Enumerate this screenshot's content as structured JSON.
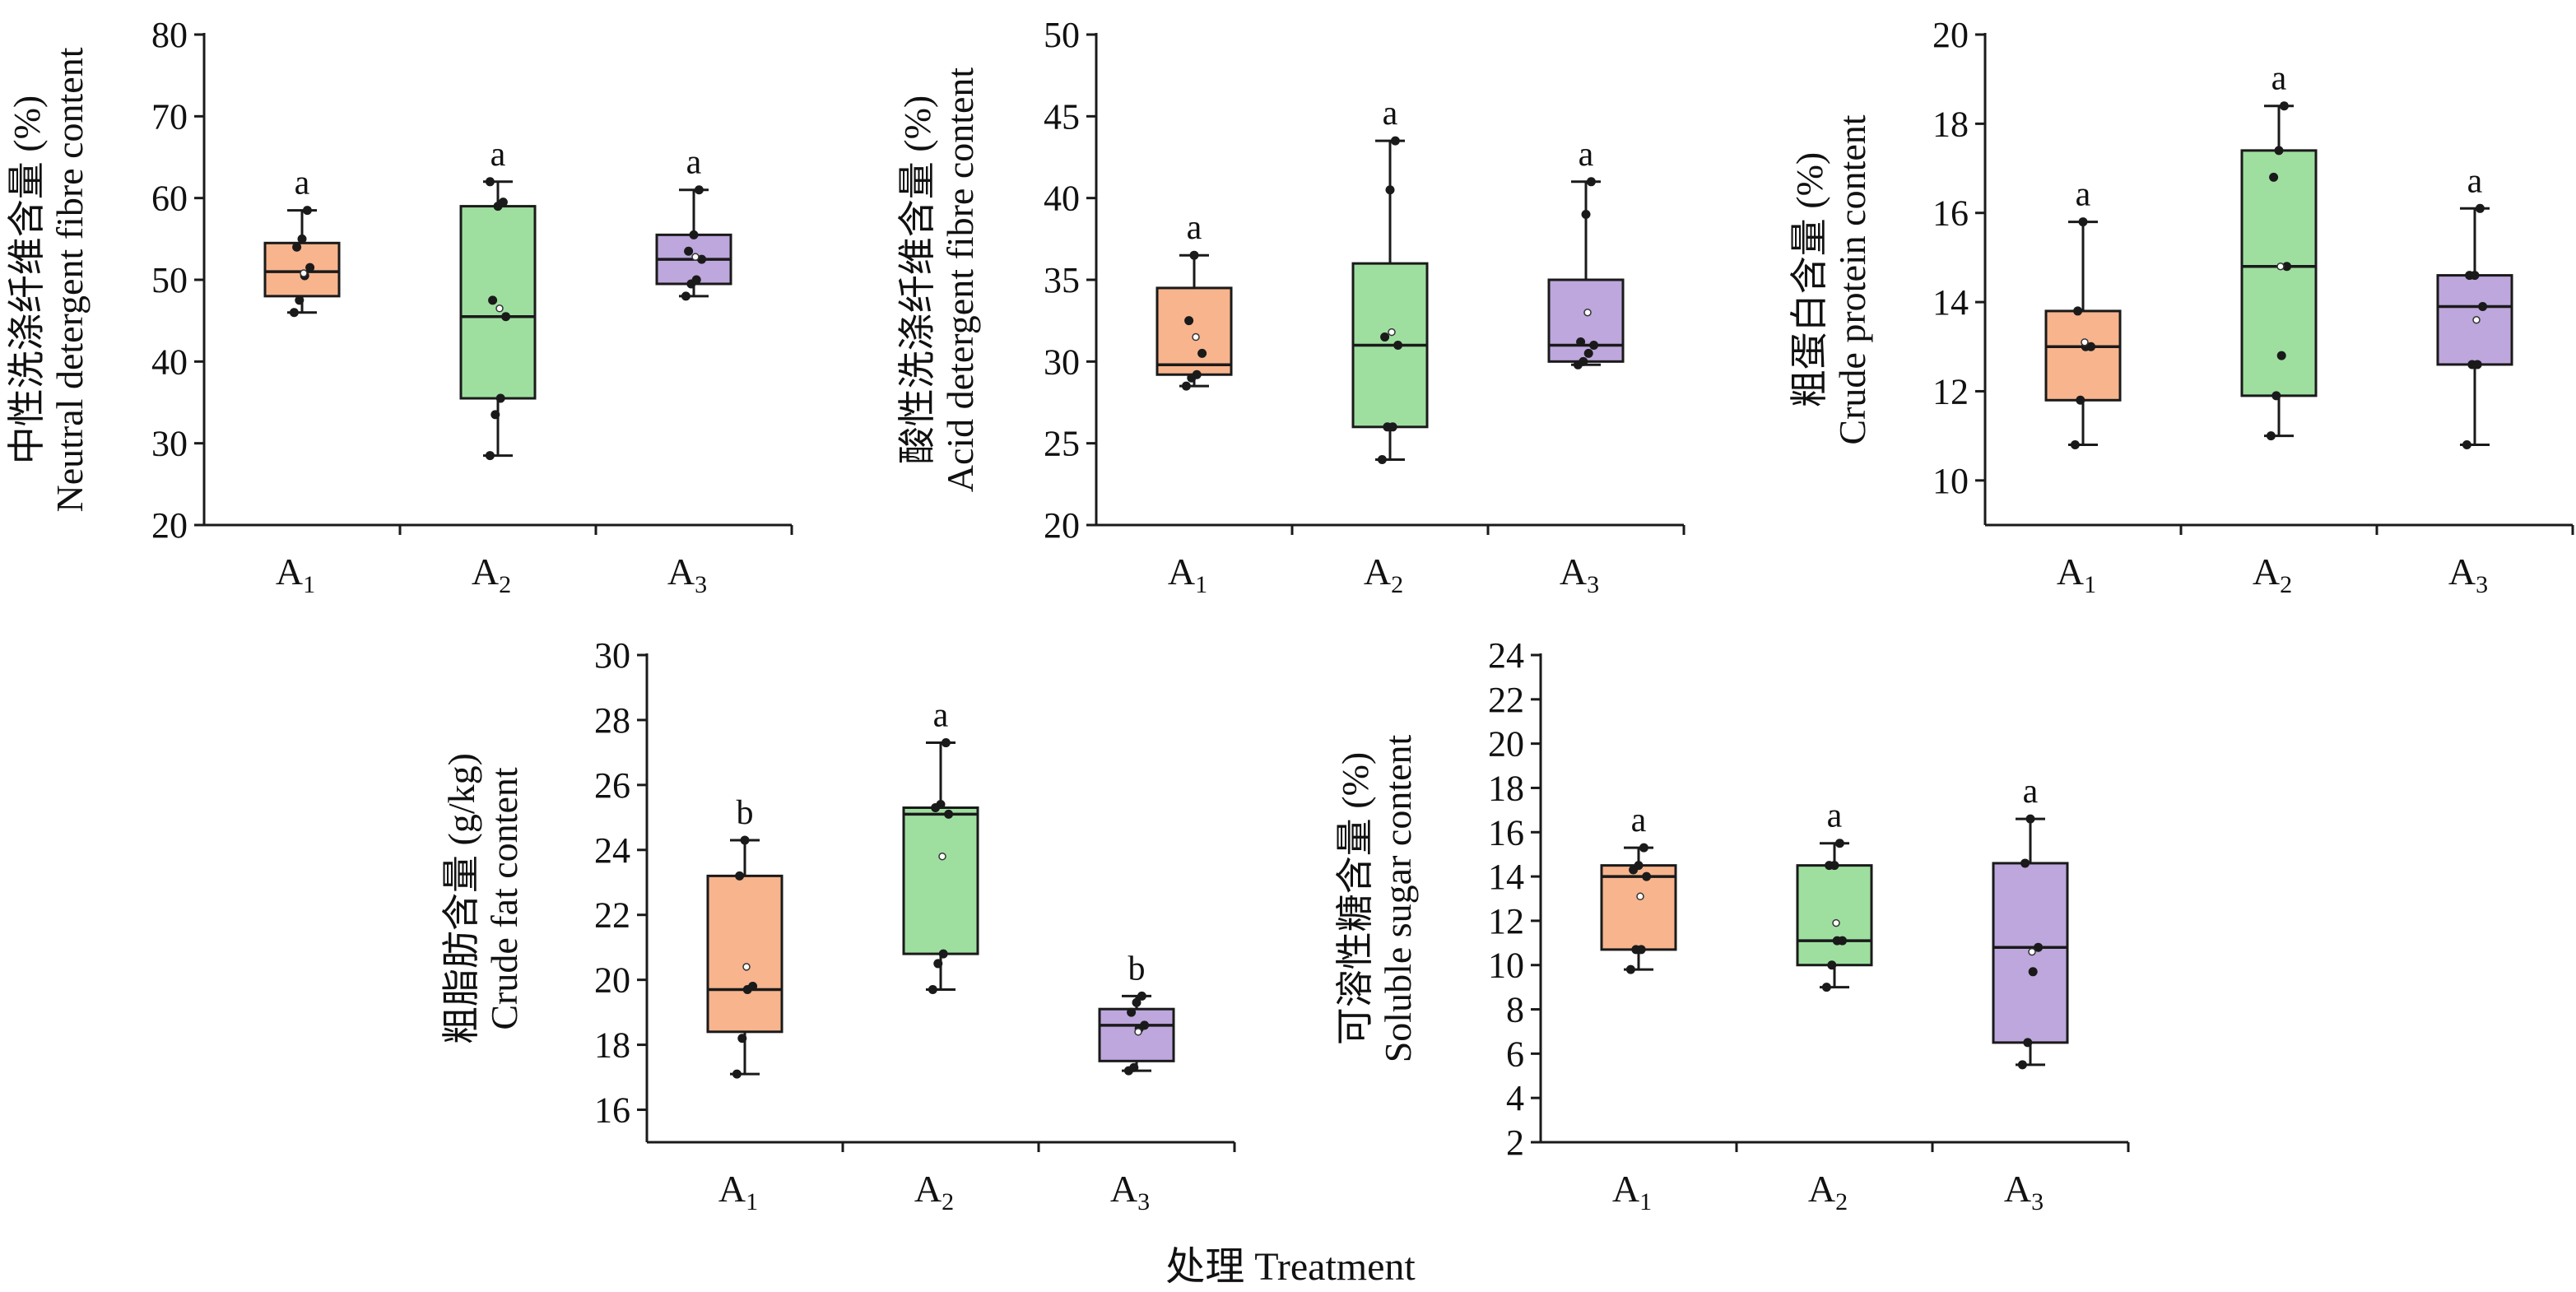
{
  "figure": {
    "xlabel": "处理 Treatment",
    "colors": {
      "A1": "#f7b48d",
      "A2": "#9edfa0",
      "A3": "#bda7dc",
      "line": "#1a1a1a",
      "point": "#1a1a1a"
    }
  },
  "chart_data": [
    {
      "type": "box",
      "ylabel_cn": "中性洗涤纤维含量 (%)",
      "ylabel_en": "Neutral detergent fibre content",
      "ylim": [
        20,
        80
      ],
      "yticks": [
        20,
        30,
        40,
        50,
        60,
        70,
        80
      ],
      "categories": [
        {
          "label": "A",
          "sub": "1"
        },
        {
          "label": "A",
          "sub": "2"
        },
        {
          "label": "A",
          "sub": "3"
        }
      ],
      "boxes": [
        {
          "min": 46,
          "q1": 48,
          "median": 51,
          "q3": 54.5,
          "max": 58.5,
          "mean": 50.8,
          "sig": "a",
          "points": [
            46,
            47.5,
            50.5,
            51.5,
            54,
            55,
            58.5
          ]
        },
        {
          "min": 28.5,
          "q1": 35.5,
          "median": 45.5,
          "q3": 59,
          "max": 62,
          "mean": 46.5,
          "sig": "a",
          "points": [
            28.5,
            33.5,
            35.5,
            45.5,
            47.5,
            59,
            59.5,
            62
          ]
        },
        {
          "min": 48,
          "q1": 49.5,
          "median": 52.5,
          "q3": 55.5,
          "max": 61,
          "mean": 52.8,
          "sig": "a",
          "points": [
            48,
            49.5,
            50,
            52.5,
            53.5,
            55.5,
            61
          ]
        }
      ]
    },
    {
      "type": "box",
      "ylabel_cn": "酸性洗涤纤维含量 (%)",
      "ylabel_en": "Acid detergent fibre content",
      "ylim": [
        20,
        50
      ],
      "yticks": [
        20,
        25,
        30,
        35,
        40,
        45,
        50
      ],
      "categories": [
        {
          "label": "A",
          "sub": "1"
        },
        {
          "label": "A",
          "sub": "2"
        },
        {
          "label": "A",
          "sub": "3"
        }
      ],
      "boxes": [
        {
          "min": 28.5,
          "q1": 29.2,
          "median": 29.8,
          "q3": 34.5,
          "max": 36.5,
          "mean": 31.5,
          "sig": "a",
          "points": [
            28.5,
            29,
            29.2,
            30.5,
            32.5,
            36.5
          ]
        },
        {
          "min": 24,
          "q1": 26,
          "median": 31,
          "q3": 36,
          "max": 43.5,
          "mean": 31.8,
          "sig": "a",
          "points": [
            24,
            26,
            26,
            31,
            31.5,
            40.5,
            43.5
          ]
        },
        {
          "min": 29.8,
          "q1": 30,
          "median": 31,
          "q3": 35,
          "max": 41,
          "mean": 33,
          "sig": "a",
          "points": [
            29.8,
            30,
            30.5,
            31,
            31.2,
            39,
            41
          ]
        }
      ]
    },
    {
      "type": "box",
      "ylabel_cn": "粗蛋白含量 (%)",
      "ylabel_en": "Crude protein content",
      "ylim": [
        9,
        20
      ],
      "yticks": [
        10,
        12,
        14,
        16,
        18,
        20
      ],
      "categories": [
        {
          "label": "A",
          "sub": "1"
        },
        {
          "label": "A",
          "sub": "2"
        },
        {
          "label": "A",
          "sub": "3"
        }
      ],
      "boxes": [
        {
          "min": 10.8,
          "q1": 11.8,
          "median": 13,
          "q3": 13.8,
          "max": 15.8,
          "mean": 13.1,
          "sig": "a",
          "points": [
            10.8,
            11.8,
            13,
            13,
            13.8,
            15.8
          ]
        },
        {
          "min": 11,
          "q1": 11.9,
          "median": 14.8,
          "q3": 17.4,
          "max": 18.4,
          "mean": 14.8,
          "sig": "a",
          "points": [
            11,
            11.9,
            12.8,
            14.8,
            16.8,
            17.4,
            18.4
          ]
        },
        {
          "min": 10.8,
          "q1": 12.6,
          "median": 13.9,
          "q3": 14.6,
          "max": 16.1,
          "mean": 13.6,
          "sig": "a",
          "points": [
            10.8,
            12.6,
            12.6,
            13.9,
            14.6,
            14.6,
            16.1
          ]
        }
      ]
    },
    {
      "type": "box",
      "ylabel_cn": "粗脂肪含量 (g/kg)",
      "ylabel_en": "Crude fat content",
      "ylim": [
        15,
        30
      ],
      "yticks": [
        16,
        18,
        20,
        22,
        24,
        26,
        28,
        30
      ],
      "categories": [
        {
          "label": "A",
          "sub": "1"
        },
        {
          "label": "A",
          "sub": "2"
        },
        {
          "label": "A",
          "sub": "3"
        }
      ],
      "boxes": [
        {
          "min": 17.1,
          "q1": 18.4,
          "median": 19.7,
          "q3": 23.2,
          "max": 24.3,
          "mean": 20.4,
          "sig": "b",
          "points": [
            17.1,
            18.2,
            19.7,
            19.8,
            23.2,
            24.3
          ]
        },
        {
          "min": 19.7,
          "q1": 20.8,
          "median": 25.1,
          "q3": 25.3,
          "max": 27.3,
          "mean": 23.8,
          "sig": "a",
          "points": [
            19.7,
            20.5,
            20.8,
            25.1,
            25.3,
            25.4,
            27.3
          ]
        },
        {
          "min": 17.2,
          "q1": 17.5,
          "median": 18.6,
          "q3": 19.1,
          "max": 19.5,
          "mean": 18.4,
          "sig": "b",
          "points": [
            17.2,
            17.3,
            18.5,
            18.6,
            19,
            19.3,
            19.5
          ]
        }
      ]
    },
    {
      "type": "box",
      "ylabel_cn": "可溶性糖含量 (%)",
      "ylabel_en": "Soluble sugar content",
      "ylim": [
        2,
        24
      ],
      "yticks": [
        2,
        4,
        6,
        8,
        10,
        12,
        14,
        16,
        18,
        20,
        22,
        24
      ],
      "categories": [
        {
          "label": "A",
          "sub": "1"
        },
        {
          "label": "A",
          "sub": "2"
        },
        {
          "label": "A",
          "sub": "3"
        }
      ],
      "boxes": [
        {
          "min": 9.8,
          "q1": 10.7,
          "median": 14,
          "q3": 14.5,
          "max": 15.3,
          "mean": 13.1,
          "sig": "a",
          "points": [
            9.8,
            10.7,
            10.7,
            14,
            14.3,
            14.5,
            15.3
          ]
        },
        {
          "min": 9,
          "q1": 10,
          "median": 11.1,
          "q3": 14.5,
          "max": 15.5,
          "mean": 11.9,
          "sig": "a",
          "points": [
            9,
            10,
            11.1,
            11.1,
            14.5,
            14.5,
            15.5
          ]
        },
        {
          "min": 5.5,
          "q1": 6.5,
          "median": 10.8,
          "q3": 14.6,
          "max": 16.6,
          "mean": 10.6,
          "sig": "a",
          "points": [
            5.5,
            6.5,
            9.7,
            10.8,
            14.6,
            16.6
          ]
        }
      ]
    }
  ]
}
